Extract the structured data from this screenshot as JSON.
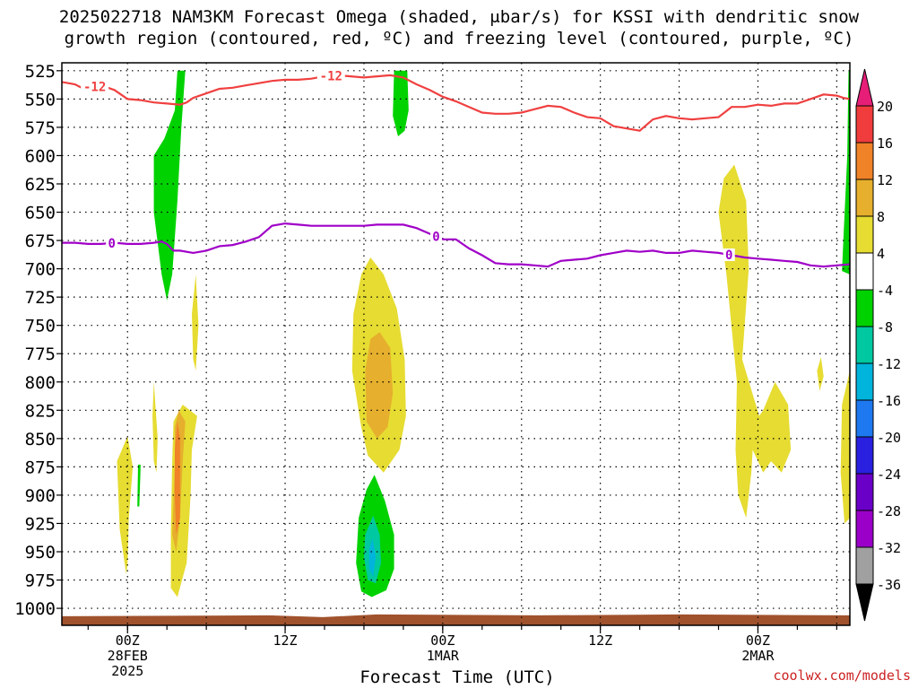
{
  "header": {
    "line1": "2025022718 NAM3KM Forecast Omega (shaded, μbar/s) for KSSI with dendritic snow",
    "line2": "growth region (contoured, red, ºC) and freezing level (contoured, purple, ºC)"
  },
  "footer": {
    "credit": "coolwx.com/models"
  },
  "chart_data": {
    "type": "heatmap",
    "xlabel": "Forecast Time (UTC)",
    "ylabel": "",
    "y_scale": "pressure (reversed)",
    "ylim": [
      1015,
      518
    ],
    "y_ticks": [
      525,
      550,
      575,
      600,
      625,
      650,
      675,
      700,
      725,
      750,
      775,
      800,
      825,
      850,
      875,
      900,
      925,
      950,
      975,
      1000
    ],
    "xlim": [
      19,
      79
    ],
    "x_ticks": [
      {
        "hour": 24,
        "lines": [
          "00Z",
          "28FEB",
          "2025"
        ]
      },
      {
        "hour": 36,
        "lines": [
          "12Z"
        ]
      },
      {
        "hour": 48,
        "lines": [
          "00Z",
          "1MAR"
        ]
      },
      {
        "hour": 60,
        "lines": [
          "12Z"
        ]
      },
      {
        "hour": 72,
        "lines": [
          "00Z",
          "2MAR"
        ]
      }
    ],
    "grid": true,
    "colorbar": {
      "levels": [
        -36,
        -32,
        -28,
        -24,
        -20,
        -16,
        -12,
        -8,
        -4,
        4,
        8,
        12,
        16,
        20
      ],
      "colors": [
        "#000000",
        "#a0a0a0",
        "#9a00c8",
        "#6a00c8",
        "#2a20e0",
        "#1e78f0",
        "#00b4dc",
        "#00c8a0",
        "#00d200",
        "#ffffff",
        "#e6dc32",
        "#e6af2d",
        "#f08228",
        "#f03c3c",
        "#e61e78"
      ]
    },
    "omega_regions": [
      {
        "color": "#00d200",
        "points": [
          [
            28.4,
            525
          ],
          [
            28.1,
            575
          ],
          [
            27.8,
            640
          ],
          [
            27.4,
            705
          ],
          [
            27.0,
            728
          ],
          [
            26.6,
            705
          ],
          [
            26.0,
            650
          ],
          [
            26.0,
            600
          ],
          [
            26.8,
            585
          ],
          [
            27.6,
            560
          ],
          [
            27.8,
            525
          ]
        ]
      },
      {
        "color": "#00d200",
        "points": [
          [
            45.3,
            525
          ],
          [
            45.4,
            560
          ],
          [
            45.1,
            578
          ],
          [
            44.6,
            583
          ],
          [
            44.2,
            565
          ],
          [
            44.3,
            525
          ]
        ]
      },
      {
        "color": "#00d200",
        "points": [
          [
            25.0,
            873
          ],
          [
            24.9,
            910
          ],
          [
            24.75,
            910
          ],
          [
            24.8,
            873
          ]
        ]
      },
      {
        "color": "#00d200",
        "points": [
          [
            79.0,
            525
          ],
          [
            79.0,
            705
          ],
          [
            78.4,
            702
          ],
          [
            78.5,
            675
          ],
          [
            78.8,
            600
          ],
          [
            78.9,
            525
          ]
        ]
      },
      {
        "color": "#00d200",
        "points": [
          [
            42.8,
            882
          ],
          [
            43.6,
            905
          ],
          [
            44.3,
            935
          ],
          [
            44.3,
            965
          ],
          [
            43.7,
            984
          ],
          [
            42.6,
            990
          ],
          [
            41.8,
            985
          ],
          [
            41.4,
            960
          ],
          [
            41.6,
            920
          ],
          [
            42.2,
            895
          ]
        ]
      },
      {
        "color": "#00c8a0",
        "points": [
          [
            42.7,
            918
          ],
          [
            43.2,
            935
          ],
          [
            43.3,
            960
          ],
          [
            42.9,
            978
          ],
          [
            42.3,
            975
          ],
          [
            42.0,
            955
          ],
          [
            42.1,
            935
          ]
        ]
      },
      {
        "color": "#00b4dc",
        "points": [
          [
            42.65,
            938
          ],
          [
            42.9,
            955
          ],
          [
            42.7,
            972
          ],
          [
            42.4,
            965
          ],
          [
            42.4,
            948
          ]
        ]
      },
      {
        "color": "#e6dc32",
        "points": [
          [
            42.5,
            690
          ],
          [
            43.5,
            705
          ],
          [
            44.5,
            735
          ],
          [
            45.1,
            780
          ],
          [
            45.2,
            830
          ],
          [
            44.7,
            860
          ],
          [
            43.5,
            880
          ],
          [
            42.3,
            865
          ],
          [
            41.8,
            840
          ],
          [
            41.1,
            790
          ],
          [
            41.2,
            740
          ],
          [
            41.8,
            705
          ]
        ]
      },
      {
        "color": "#e6af2d",
        "points": [
          [
            43.2,
            756
          ],
          [
            44.0,
            770
          ],
          [
            44.2,
            810
          ],
          [
            43.8,
            840
          ],
          [
            43.0,
            850
          ],
          [
            42.2,
            835
          ],
          [
            42.1,
            790
          ],
          [
            42.5,
            762
          ]
        ]
      },
      {
        "color": "#e6dc32",
        "points": [
          [
            28.2,
            820
          ],
          [
            29.3,
            830
          ],
          [
            28.9,
            860
          ],
          [
            28.8,
            900
          ],
          [
            28.5,
            960
          ],
          [
            27.8,
            990
          ],
          [
            27.3,
            982
          ],
          [
            27.3,
            930
          ],
          [
            27.4,
            870
          ],
          [
            27.5,
            835
          ]
        ]
      },
      {
        "color": "#e6af2d",
        "points": [
          [
            27.9,
            825
          ],
          [
            28.4,
            835
          ],
          [
            28.2,
            870
          ],
          [
            28.0,
            920
          ],
          [
            27.7,
            950
          ],
          [
            27.4,
            935
          ],
          [
            27.6,
            870
          ],
          [
            27.6,
            840
          ]
        ]
      },
      {
        "color": "#f08228",
        "points": [
          [
            27.8,
            835
          ],
          [
            28.0,
            850
          ],
          [
            28.0,
            920
          ],
          [
            27.7,
            935
          ],
          [
            27.6,
            900
          ],
          [
            27.6,
            860
          ]
        ]
      },
      {
        "color": "#e6dc32",
        "points": [
          [
            26.0,
            800
          ],
          [
            26.3,
            850
          ],
          [
            26.2,
            880
          ],
          [
            26.0,
            870
          ],
          [
            25.9,
            830
          ]
        ]
      },
      {
        "color": "#e6dc32",
        "points": [
          [
            24.0,
            848
          ],
          [
            24.4,
            875
          ],
          [
            24.1,
            920
          ],
          [
            24.0,
            960
          ],
          [
            23.9,
            970
          ],
          [
            23.4,
            930
          ],
          [
            23.2,
            870
          ]
        ]
      },
      {
        "color": "#e6dc32",
        "points": [
          [
            29.2,
            705
          ],
          [
            29.4,
            750
          ],
          [
            29.2,
            790
          ],
          [
            29.0,
            780
          ],
          [
            28.9,
            740
          ]
        ]
      },
      {
        "color": "#e6dc32",
        "points": [
          [
            70.2,
            608
          ],
          [
            71.1,
            640
          ],
          [
            71.3,
            700
          ],
          [
            70.8,
            780
          ],
          [
            72.1,
            830
          ],
          [
            72.4,
            825
          ],
          [
            73.3,
            800
          ],
          [
            74.3,
            820
          ],
          [
            74.5,
            860
          ],
          [
            73.8,
            880
          ],
          [
            73.0,
            870
          ],
          [
            72.4,
            880
          ],
          [
            71.6,
            860
          ],
          [
            71.5,
            880
          ],
          [
            71.1,
            920
          ],
          [
            70.5,
            900
          ],
          [
            70.3,
            860
          ],
          [
            70.4,
            800
          ],
          [
            69.6,
            705
          ],
          [
            69.0,
            650
          ],
          [
            69.4,
            620
          ]
        ]
      },
      {
        "color": "#e6dc32",
        "points": [
          [
            79.0,
            790
          ],
          [
            79.0,
            920
          ],
          [
            78.6,
            925
          ],
          [
            78.3,
            880
          ],
          [
            78.4,
            820
          ]
        ]
      },
      {
        "color": "#e6dc32",
        "points": [
          [
            76.8,
            778
          ],
          [
            77.0,
            795
          ],
          [
            76.7,
            808
          ],
          [
            76.5,
            790
          ]
        ]
      }
    ],
    "series": [
      {
        "name": "Dendritic growth (-12 ºC)",
        "color": "#f04040",
        "label": "-12",
        "x": [
          19,
          19.5,
          20,
          20.5,
          21,
          21.5,
          22,
          23,
          24,
          25,
          26,
          27,
          28,
          28.5,
          29,
          30,
          31,
          32,
          33,
          34,
          35,
          36,
          37,
          38,
          39,
          40,
          41,
          42,
          43,
          44,
          45,
          46,
          47,
          48,
          49,
          50,
          51,
          52,
          53,
          54,
          55,
          56,
          57,
          58,
          59,
          60,
          61,
          62,
          63,
          64,
          65,
          66,
          67,
          68,
          69,
          70,
          71,
          72,
          73,
          74,
          75,
          76,
          77,
          78,
          78.5,
          79
        ],
        "y": [
          535,
          536,
          537,
          540,
          541,
          539,
          538,
          542,
          550,
          551,
          553,
          554,
          555,
          553,
          549,
          545,
          541,
          540,
          538,
          536,
          534,
          533,
          533,
          532,
          530,
          529,
          530,
          531,
          530,
          529,
          531,
          537,
          542,
          548,
          552,
          557,
          562,
          563,
          563,
          562,
          559,
          556,
          557,
          562,
          566,
          567,
          574,
          576,
          578,
          568,
          565,
          567,
          568,
          567,
          566,
          557,
          557,
          555,
          556,
          554,
          554,
          550,
          546,
          547,
          549,
          550
        ]
      },
      {
        "name": "Freezing level (0 ºC)",
        "color": "#a000c8",
        "label": "0",
        "x": [
          19,
          20,
          21,
          22,
          23,
          24,
          25,
          26,
          26.6,
          27,
          27.5,
          28,
          29,
          30,
          31,
          32,
          33,
          34,
          35,
          36,
          37,
          38,
          39,
          40,
          41,
          42,
          43,
          44,
          45,
          46,
          47,
          48,
          49,
          50,
          51,
          52,
          53,
          54,
          55,
          56,
          57,
          58,
          59,
          60,
          61,
          62,
          63,
          64,
          65,
          66,
          67,
          68,
          69,
          70,
          71,
          72,
          73,
          74,
          75,
          76,
          77,
          78,
          79
        ],
        "y": [
          677,
          677,
          678,
          678,
          677,
          678,
          678,
          677,
          676,
          678,
          684,
          684,
          686,
          684,
          680,
          679,
          676,
          672,
          662,
          660,
          661,
          662,
          662,
          662,
          662,
          662,
          661,
          661,
          661,
          664,
          669,
          674,
          674,
          682,
          688,
          695,
          696,
          696,
          697,
          698,
          693,
          692,
          691,
          688,
          686,
          684,
          685,
          684,
          686,
          686,
          684,
          685,
          686,
          688,
          690,
          691,
          692,
          693,
          694,
          697,
          698,
          697,
          696
        ]
      }
    ],
    "terrain": {
      "color": "#a0522d",
      "surface_pressure": 1007
    }
  }
}
